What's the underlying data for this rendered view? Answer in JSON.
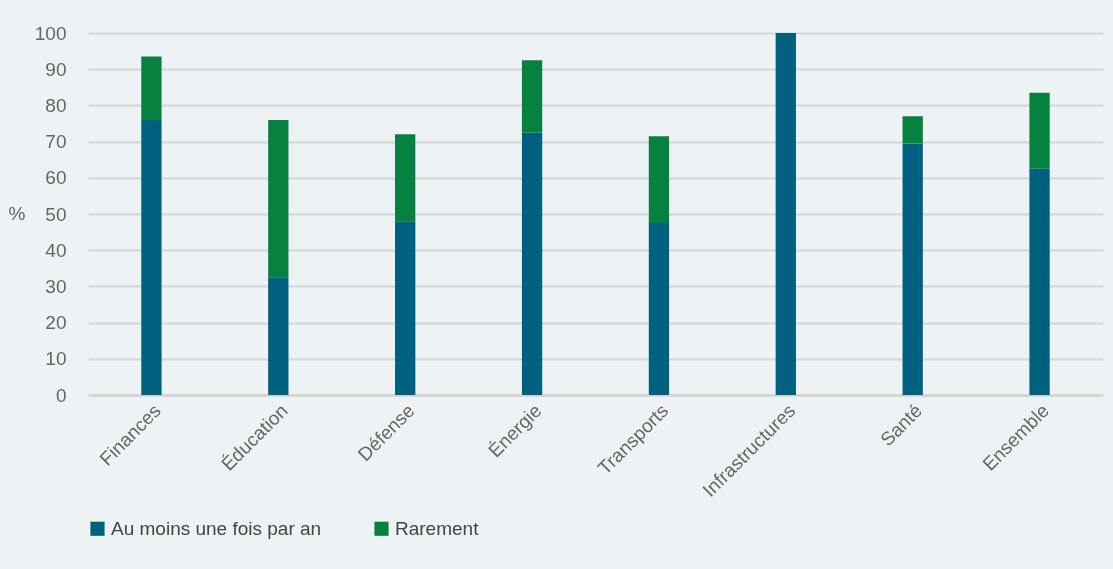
{
  "chart_data": {
    "type": "bar",
    "stacked": true,
    "ylabel": "%",
    "categories": [
      "Finances",
      "Éducation",
      "Défense",
      "Énergie",
      "Transports",
      "Infrastructures",
      "Santé",
      "Ensemble"
    ],
    "series": [
      {
        "name": "Au moins une fois par an",
        "color": "#006080",
        "values": [
          76,
          32.5,
          48,
          72.5,
          47.5,
          100,
          69.5,
          62.5
        ]
      },
      {
        "name": "Rarement",
        "color": "#068140",
        "values": [
          17.5,
          43.5,
          24,
          20,
          24,
          null,
          7.5,
          21
        ]
      }
    ],
    "ylim": [
      0,
      100
    ],
    "yticks": [
      0,
      10,
      20,
      30,
      40,
      50,
      60,
      70,
      80,
      90,
      100
    ],
    "grid": "y",
    "legend": "bottom"
  }
}
